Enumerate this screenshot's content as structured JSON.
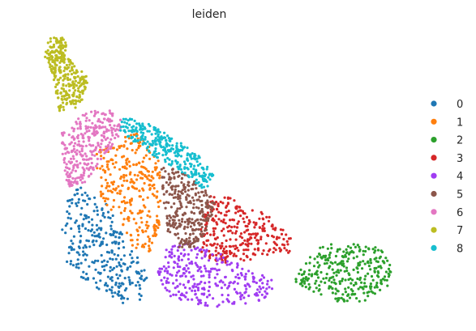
{
  "chart_data": {
    "type": "scatter",
    "title": "leiden",
    "xlabel": "",
    "ylabel": "",
    "grid": false,
    "axes_visible": false,
    "legend_position": "right",
    "points_per_cluster": 300,
    "point_radius_px": 1.6,
    "series": [
      {
        "name": "0",
        "color": "#1f77b4",
        "region": [
          [
            0.13,
            0.57
          ],
          [
            0.17,
            0.55
          ],
          [
            0.23,
            0.6
          ],
          [
            0.31,
            0.77
          ],
          [
            0.36,
            0.88
          ],
          [
            0.36,
            0.97
          ],
          [
            0.28,
            0.99
          ],
          [
            0.2,
            0.92
          ],
          [
            0.12,
            0.85
          ],
          [
            0.11,
            0.72
          ]
        ]
      },
      {
        "name": "1",
        "color": "#ff7f0e",
        "region": [
          [
            0.21,
            0.43
          ],
          [
            0.26,
            0.39
          ],
          [
            0.33,
            0.36
          ],
          [
            0.37,
            0.41
          ],
          [
            0.4,
            0.47
          ],
          [
            0.4,
            0.7
          ],
          [
            0.37,
            0.8
          ],
          [
            0.32,
            0.78
          ],
          [
            0.28,
            0.68
          ],
          [
            0.22,
            0.6
          ]
        ]
      },
      {
        "name": "2",
        "color": "#2ca02c",
        "region": [
          [
            0.87,
            0.78
          ],
          [
            0.91,
            0.76
          ],
          [
            0.97,
            0.77
          ],
          [
            1.04,
            0.78
          ],
          [
            1.08,
            0.84
          ],
          [
            1.07,
            0.92
          ],
          [
            1.0,
            0.98
          ],
          [
            0.92,
            0.98
          ],
          [
            0.84,
            0.94
          ],
          [
            0.79,
            0.91
          ],
          [
            0.82,
            0.84
          ]
        ]
      },
      {
        "name": "3",
        "color": "#d62728",
        "region": [
          [
            0.55,
            0.58
          ],
          [
            0.61,
            0.6
          ],
          [
            0.68,
            0.64
          ],
          [
            0.74,
            0.68
          ],
          [
            0.79,
            0.75
          ],
          [
            0.78,
            0.8
          ],
          [
            0.72,
            0.81
          ],
          [
            0.65,
            0.83
          ],
          [
            0.58,
            0.84
          ],
          [
            0.52,
            0.81
          ],
          [
            0.51,
            0.73
          ],
          [
            0.53,
            0.63
          ]
        ]
      },
      {
        "name": "4",
        "color": "#a03cf2",
        "region": [
          [
            0.42,
            0.78
          ],
          [
            0.48,
            0.76
          ],
          [
            0.56,
            0.79
          ],
          [
            0.64,
            0.85
          ],
          [
            0.73,
            0.9
          ],
          [
            0.74,
            0.96
          ],
          [
            0.66,
            0.99
          ],
          [
            0.56,
            1.0
          ],
          [
            0.48,
            0.99
          ],
          [
            0.41,
            0.95
          ],
          [
            0.39,
            0.88
          ]
        ]
      },
      {
        "name": "5",
        "color": "#8c564b",
        "region": [
          [
            0.4,
            0.48
          ],
          [
            0.46,
            0.5
          ],
          [
            0.52,
            0.55
          ],
          [
            0.56,
            0.62
          ],
          [
            0.54,
            0.71
          ],
          [
            0.5,
            0.78
          ],
          [
            0.45,
            0.78
          ],
          [
            0.42,
            0.72
          ],
          [
            0.41,
            0.62
          ]
        ]
      },
      {
        "name": "6",
        "color": "#e377c2",
        "region": [
          [
            0.11,
            0.36
          ],
          [
            0.18,
            0.28
          ],
          [
            0.25,
            0.27
          ],
          [
            0.29,
            0.32
          ],
          [
            0.27,
            0.4
          ],
          [
            0.22,
            0.47
          ],
          [
            0.18,
            0.54
          ],
          [
            0.13,
            0.56
          ],
          [
            0.11,
            0.48
          ]
        ]
      },
      {
        "name": "7",
        "color": "#bcbd22",
        "region": [
          [
            0.07,
            0.0
          ],
          [
            0.12,
            0.01
          ],
          [
            0.13,
            0.08
          ],
          [
            0.19,
            0.16
          ],
          [
            0.17,
            0.24
          ],
          [
            0.14,
            0.28
          ],
          [
            0.1,
            0.28
          ],
          [
            0.09,
            0.18
          ],
          [
            0.06,
            0.08
          ]
        ]
      },
      {
        "name": "8",
        "color": "#17becf",
        "region": [
          [
            0.29,
            0.3
          ],
          [
            0.36,
            0.32
          ],
          [
            0.43,
            0.37
          ],
          [
            0.51,
            0.44
          ],
          [
            0.56,
            0.52
          ],
          [
            0.53,
            0.57
          ],
          [
            0.47,
            0.51
          ],
          [
            0.4,
            0.46
          ],
          [
            0.33,
            0.4
          ],
          [
            0.28,
            0.35
          ]
        ]
      }
    ]
  }
}
